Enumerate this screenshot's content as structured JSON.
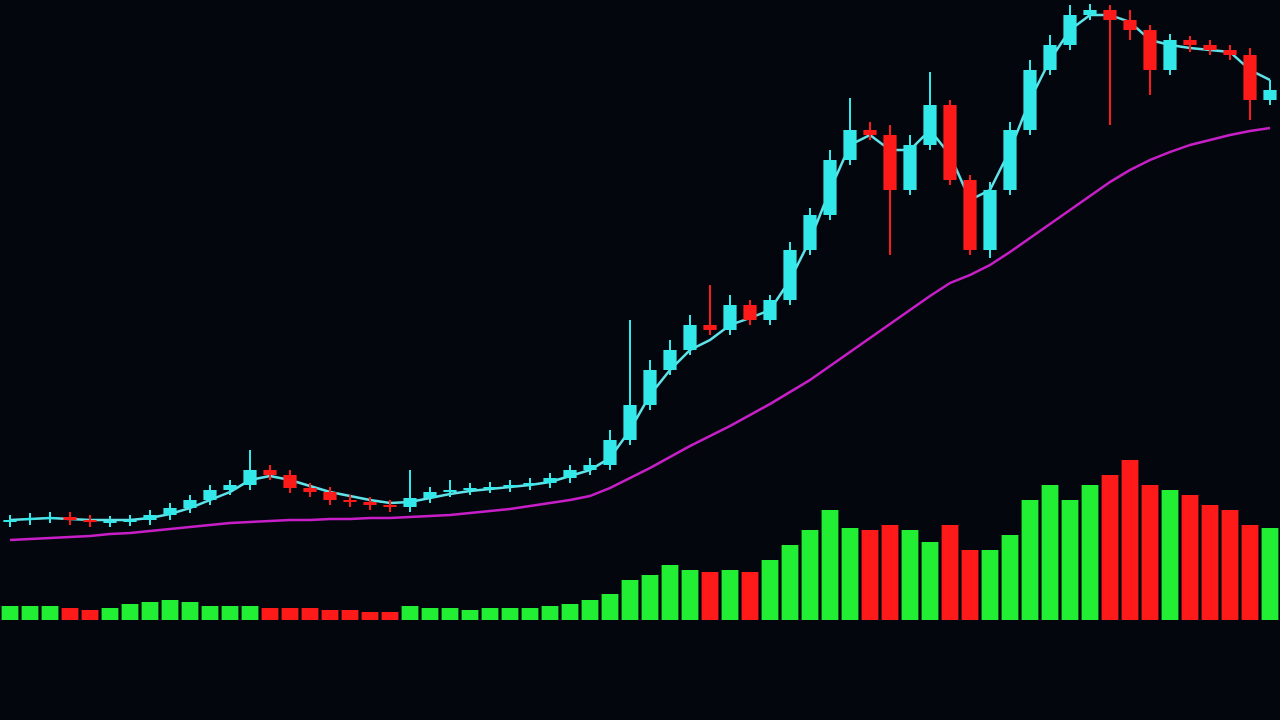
{
  "chart_data": {
    "type": "candlestick",
    "ylim": [
      0,
      720
    ],
    "up_color": "#33e8e8",
    "down_color": "#ff1a1a",
    "open": [
      198,
      200,
      202,
      203,
      200,
      198,
      199,
      200,
      205,
      212,
      220,
      230,
      235,
      250,
      245,
      232,
      228,
      220,
      218,
      215,
      213,
      222,
      228,
      230,
      232,
      233,
      235,
      237,
      242,
      250,
      255,
      280,
      315,
      350,
      370,
      395,
      390,
      415,
      400,
      420,
      470,
      505,
      560,
      590,
      585,
      530,
      575,
      615,
      540,
      470,
      530,
      590,
      650,
      675,
      705,
      710,
      700,
      690,
      650,
      680,
      675,
      670,
      665,
      620
    ],
    "high": [
      205,
      207,
      208,
      208,
      205,
      204,
      205,
      210,
      217,
      225,
      235,
      240,
      270,
      255,
      250,
      237,
      233,
      225,
      223,
      220,
      250,
      233,
      240,
      237,
      238,
      240,
      242,
      247,
      255,
      262,
      290,
      400,
      360,
      380,
      405,
      435,
      425,
      420,
      425,
      478,
      512,
      570,
      622,
      598,
      595,
      585,
      648,
      620,
      545,
      538,
      598,
      660,
      685,
      715,
      716,
      715,
      710,
      695,
      686,
      684,
      680,
      675,
      672,
      640
    ],
    "low": [
      193,
      195,
      197,
      195,
      193,
      193,
      194,
      195,
      200,
      207,
      215,
      225,
      230,
      240,
      227,
      223,
      215,
      213,
      210,
      208,
      208,
      217,
      223,
      225,
      227,
      228,
      230,
      232,
      237,
      245,
      250,
      275,
      310,
      345,
      365,
      385,
      385,
      395,
      395,
      415,
      465,
      500,
      555,
      580,
      465,
      525,
      570,
      535,
      465,
      462,
      525,
      585,
      645,
      670,
      700,
      595,
      680,
      625,
      645,
      668,
      665,
      660,
      600,
      615
    ],
    "close": [
      200,
      202,
      203,
      200,
      198,
      199,
      200,
      205,
      212,
      220,
      230,
      235,
      250,
      245,
      232,
      228,
      220,
      218,
      215,
      213,
      222,
      228,
      230,
      232,
      233,
      235,
      237,
      242,
      250,
      255,
      280,
      315,
      350,
      370,
      395,
      390,
      415,
      400,
      420,
      470,
      505,
      560,
      590,
      585,
      530,
      575,
      615,
      540,
      470,
      530,
      590,
      650,
      675,
      705,
      710,
      700,
      690,
      650,
      680,
      675,
      670,
      665,
      620,
      630
    ],
    "series": [
      {
        "color": "#5fe3e8",
        "values": [
          200,
          201,
          202,
          201,
          200,
          200,
          200,
          202,
          206,
          212,
          220,
          228,
          240,
          244,
          240,
          234,
          228,
          224,
          220,
          217,
          218,
          222,
          226,
          229,
          231,
          233,
          235,
          238,
          244,
          250,
          262,
          290,
          325,
          350,
          370,
          380,
          395,
          402,
          410,
          440,
          480,
          530,
          575,
          585,
          570,
          570,
          590,
          565,
          520,
          530,
          570,
          620,
          660,
          690,
          705,
          705,
          698,
          680,
          675,
          672,
          670,
          668,
          650,
          640
        ]
      },
      {
        "color": "#c81ec8",
        "values": [
          180,
          181,
          182,
          183,
          184,
          186,
          187,
          189,
          191,
          193,
          195,
          197,
          198,
          199,
          200,
          200,
          201,
          201,
          202,
          202,
          203,
          204,
          205,
          207,
          209,
          211,
          214,
          217,
          220,
          224,
          232,
          242,
          252,
          263,
          274,
          284,
          294,
          305,
          316,
          328,
          340,
          354,
          368,
          382,
          396,
          410,
          424,
          437,
          445,
          455,
          468,
          482,
          496,
          510,
          524,
          538,
          550,
          560,
          568,
          575,
          580,
          585,
          589,
          592
        ]
      }
    ],
    "volume": [
      14,
      14,
      14,
      12,
      10,
      12,
      16,
      18,
      20,
      18,
      14,
      14,
      14,
      12,
      12,
      12,
      10,
      10,
      8,
      8,
      14,
      12,
      12,
      10,
      12,
      12,
      12,
      14,
      16,
      20,
      26,
      40,
      45,
      55,
      50,
      48,
      50,
      48,
      60,
      75,
      90,
      110,
      92,
      90,
      95,
      90,
      78,
      95,
      70,
      70,
      85,
      120,
      135,
      120,
      135,
      145,
      160,
      135,
      130,
      125,
      115,
      110,
      95,
      92
    ],
    "volume_ylim": [
      0,
      160
    ],
    "volume_up_color": "#22ee33",
    "volume_down_color": "#ff1a1a"
  }
}
